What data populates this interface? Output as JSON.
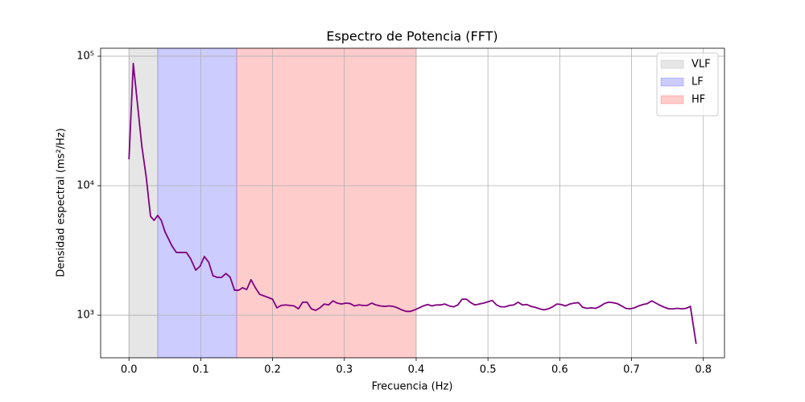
{
  "chart_data": {
    "type": "line",
    "title": "Espectro de Potencia (FFT)",
    "x_label": "Frecuencia (Hz)",
    "y_label": "Densidad espectral (ms²/Hz)",
    "x": [
      0,
      0.006,
      0.012,
      0.018,
      0.024,
      0.03,
      0.035,
      0.04,
      0.045,
      0.05,
      0.06,
      0.066,
      0.08,
      0.086,
      0.093,
      0.099,
      0.105,
      0.111,
      0.117,
      0.123,
      0.129,
      0.135,
      0.141,
      0.147,
      0.153,
      0.158,
      0.164,
      0.17,
      0.176,
      0.182,
      0.194,
      0.2,
      0.206,
      0.212,
      0.218,
      0.224,
      0.23,
      0.236,
      0.242,
      0.248,
      0.254,
      0.26,
      0.266,
      0.272,
      0.278,
      0.284,
      0.29,
      0.296,
      0.302,
      0.308,
      0.314,
      0.32,
      0.326,
      0.332,
      0.338,
      0.344,
      0.35,
      0.356,
      0.362,
      0.368,
      0.374,
      0.38,
      0.386,
      0.392,
      0.398,
      0.404,
      0.41,
      0.416,
      0.422,
      0.428,
      0.434,
      0.44,
      0.446,
      0.452,
      0.458,
      0.464,
      0.47,
      0.476,
      0.482,
      0.488,
      0.494,
      0.5,
      0.506,
      0.512,
      0.518,
      0.524,
      0.53,
      0.536,
      0.542,
      0.548,
      0.554,
      0.56,
      0.566,
      0.572,
      0.578,
      0.584,
      0.59,
      0.596,
      0.602,
      0.608,
      0.614,
      0.62,
      0.626,
      0.632,
      0.638,
      0.644,
      0.65,
      0.656,
      0.662,
      0.668,
      0.674,
      0.68,
      0.686,
      0.692,
      0.698,
      0.704,
      0.71,
      0.716,
      0.722,
      0.728,
      0.734,
      0.74,
      0.746,
      0.752,
      0.758,
      0.764,
      0.77,
      0.776,
      0.782,
      0.79
    ],
    "values": [
      16000,
      88000,
      42000,
      20000,
      11700,
      5800,
      5400,
      5900,
      5400,
      4430,
      3420,
      3050,
      3050,
      2720,
      2230,
      2390,
      2840,
      2570,
      2020,
      1960,
      1960,
      2100,
      1960,
      1560,
      1560,
      1630,
      1580,
      1880,
      1630,
      1450,
      1370,
      1330,
      1140,
      1190,
      1200,
      1190,
      1180,
      1120,
      1260,
      1260,
      1120,
      1090,
      1140,
      1220,
      1200,
      1290,
      1240,
      1220,
      1240,
      1230,
      1180,
      1200,
      1190,
      1190,
      1240,
      1200,
      1180,
      1170,
      1180,
      1170,
      1140,
      1100,
      1070,
      1070,
      1100,
      1140,
      1180,
      1210,
      1180,
      1200,
      1200,
      1220,
      1180,
      1160,
      1200,
      1330,
      1330,
      1250,
      1200,
      1220,
      1240,
      1270,
      1300,
      1200,
      1160,
      1160,
      1190,
      1200,
      1260,
      1200,
      1210,
      1170,
      1150,
      1120,
      1100,
      1120,
      1160,
      1220,
      1210,
      1180,
      1220,
      1240,
      1250,
      1150,
      1130,
      1140,
      1130,
      1170,
      1230,
      1260,
      1250,
      1230,
      1180,
      1130,
      1120,
      1140,
      1180,
      1210,
      1230,
      1290,
      1240,
      1190,
      1150,
      1120,
      1120,
      1130,
      1120,
      1130,
      1170,
      600
    ],
    "color": "#800080",
    "bands": [
      {
        "name": "VLF",
        "range": [
          0,
          0.04
        ],
        "color": "#808080"
      },
      {
        "name": "LF",
        "range": [
          0.04,
          0.15
        ],
        "color": "#0000ff"
      },
      {
        "name": "HF",
        "range": [
          0.15,
          0.4
        ],
        "color": "#ff0000"
      }
    ],
    "xlim": [
      -0.0395,
      0.8295
    ],
    "ylim": [
      469,
      115300
    ],
    "log_y": true,
    "xticks": [
      {
        "value": 0,
        "label": "0.0"
      },
      0.1,
      0.2,
      0.3,
      0.4,
      0.5,
      0.6,
      0.7,
      0.8
    ],
    "yticks": [
      {
        "value": 1000,
        "label": "10³"
      },
      {
        "value": 10000,
        "label": "10⁴"
      },
      {
        "value": 100000,
        "label": "10⁵"
      }
    ],
    "grid": true,
    "legend": "upper right"
  }
}
